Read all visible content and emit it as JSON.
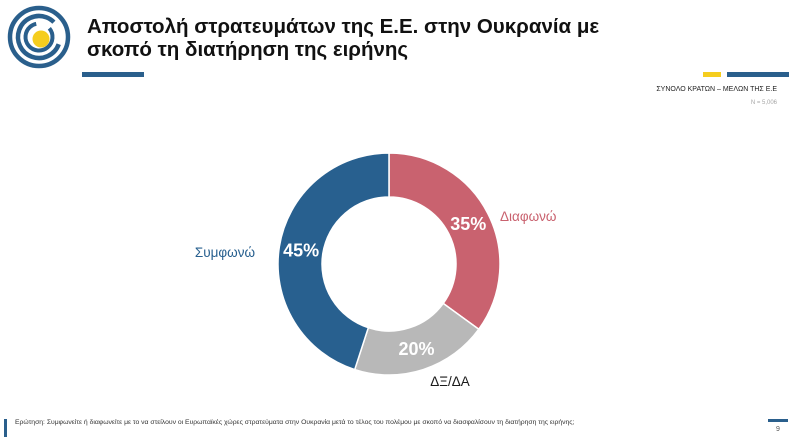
{
  "header": {
    "title_line1": "Αποστολή στρατευμάτων της Ε.Ε. στην Ουκρανία με",
    "title_line2": "σκοπό τη διατήρηση της ειρήνης"
  },
  "sample": {
    "label": "ΣΥΝΟΛΟ ΚΡΑΤΩΝ – ΜΕΛΩΝ ΤΗΣ Ε.Ε",
    "n": "N = 5,006"
  },
  "colors": {
    "brand_blue": "#2a5f8c",
    "accent_yellow": "#f5cd1e"
  },
  "chart_data": {
    "type": "pie",
    "donut": true,
    "order": "clockwise from top",
    "slices": [
      {
        "label": "Διαφωνώ",
        "value": 35,
        "value_label": "35%",
        "color": "#c9626f"
      },
      {
        "label": "ΔΞ/ΔΑ",
        "value": 20,
        "value_label": "20%",
        "color": "#b8b8b8"
      },
      {
        "label": "Συμφωνώ",
        "value": 45,
        "value_label": "45%",
        "color": "#28608f"
      }
    ]
  },
  "footer": {
    "question": "Ερώτηση: Συμφωνείτε ή διαφωνείτε με το να στείλουν οι Ευρωπαϊκές χώρες στρατεύματα στην Ουκρανία μετά το τέλος του πολέμου με σκοπό να διασφαλίσουν τη διατήρηση της ειρήνης;",
    "page": "9"
  }
}
